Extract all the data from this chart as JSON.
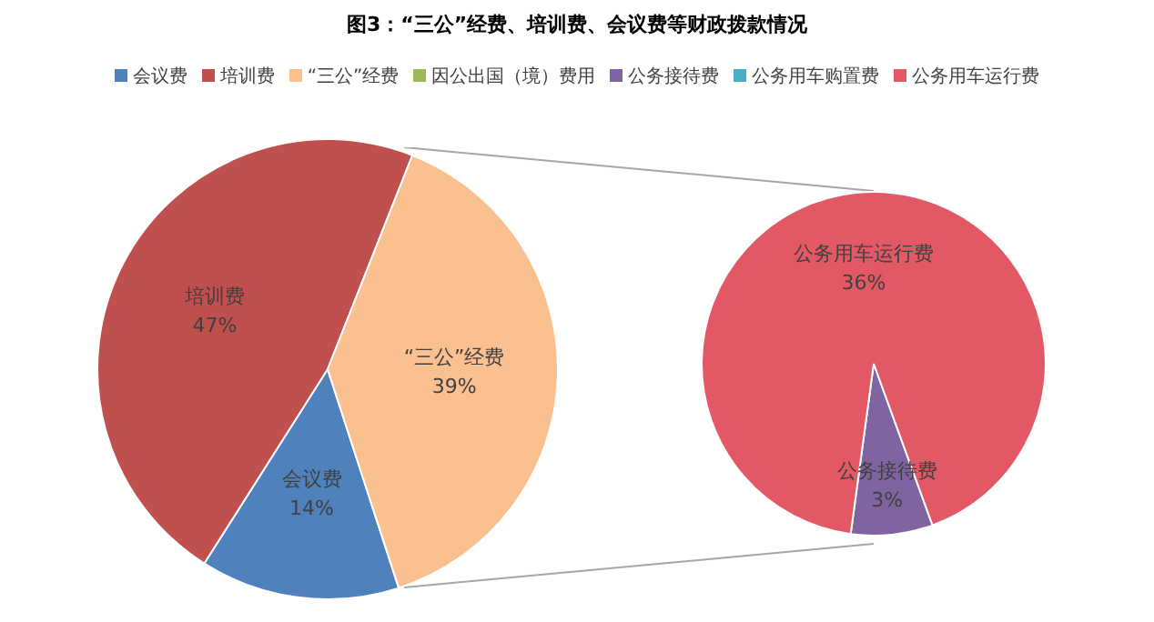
{
  "chart_data": [
    {
      "type": "pie",
      "title": "图3：“三公”经费、培训费、会议费等财政拨款情况",
      "legend": "top",
      "categories": [
        "会议费",
        "培训费",
        "“三公”经费"
      ],
      "values": [
        14,
        47,
        39
      ],
      "colors": [
        "#4f81bd",
        "#c0504d",
        "#fac090"
      ],
      "value_labels": [
        "14%",
        "47%",
        "39%"
      ]
    },
    {
      "type": "pie",
      "legend": "top",
      "categories": [
        "因公出国（境）费用",
        "公务接待费",
        "公务用车购置费",
        "公务用车运行费"
      ],
      "values": [
        0,
        3,
        0,
        36
      ],
      "colors": [
        "#9bbb59",
        "#8064a2",
        "#4bacc6",
        "#e25864"
      ],
      "value_labels": [
        null,
        "3%",
        null,
        "36%"
      ]
    }
  ]
}
